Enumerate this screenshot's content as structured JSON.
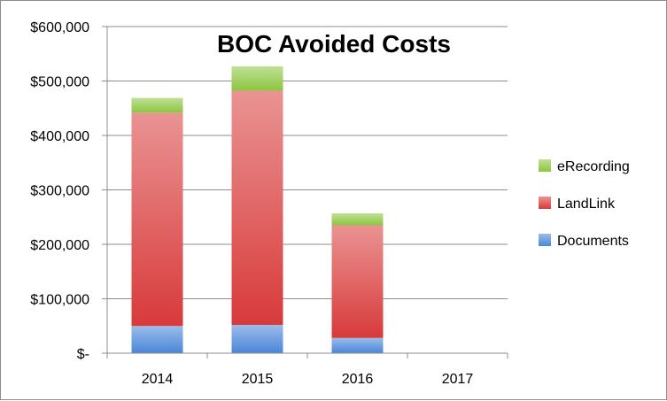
{
  "chart_data": {
    "type": "bar",
    "stacked": true,
    "title": "BOC Avoided Costs",
    "categories": [
      "2014",
      "2015",
      "2016",
      "2017"
    ],
    "series": [
      {
        "name": "Documents",
        "values": [
          50000,
          52000,
          28000,
          0
        ],
        "color": "#4a86d8"
      },
      {
        "name": "LandLink",
        "values": [
          392000,
          430000,
          207000,
          0
        ],
        "color": "#d83a3a"
      },
      {
        "name": "eRecording",
        "values": [
          27000,
          45000,
          22000,
          0
        ],
        "color": "#8cc63f"
      }
    ],
    "ylim": [
      0,
      600000
    ],
    "yticks": [
      0,
      100000,
      200000,
      300000,
      400000,
      500000,
      600000
    ],
    "ytick_labels": [
      "$-",
      "$100,000",
      "$200,000",
      "$300,000",
      "$400,000",
      "$500,000",
      "$600,000"
    ],
    "legend_order": [
      "eRecording",
      "LandLink",
      "Documents"
    ],
    "legend_position": "right",
    "grid": true
  }
}
